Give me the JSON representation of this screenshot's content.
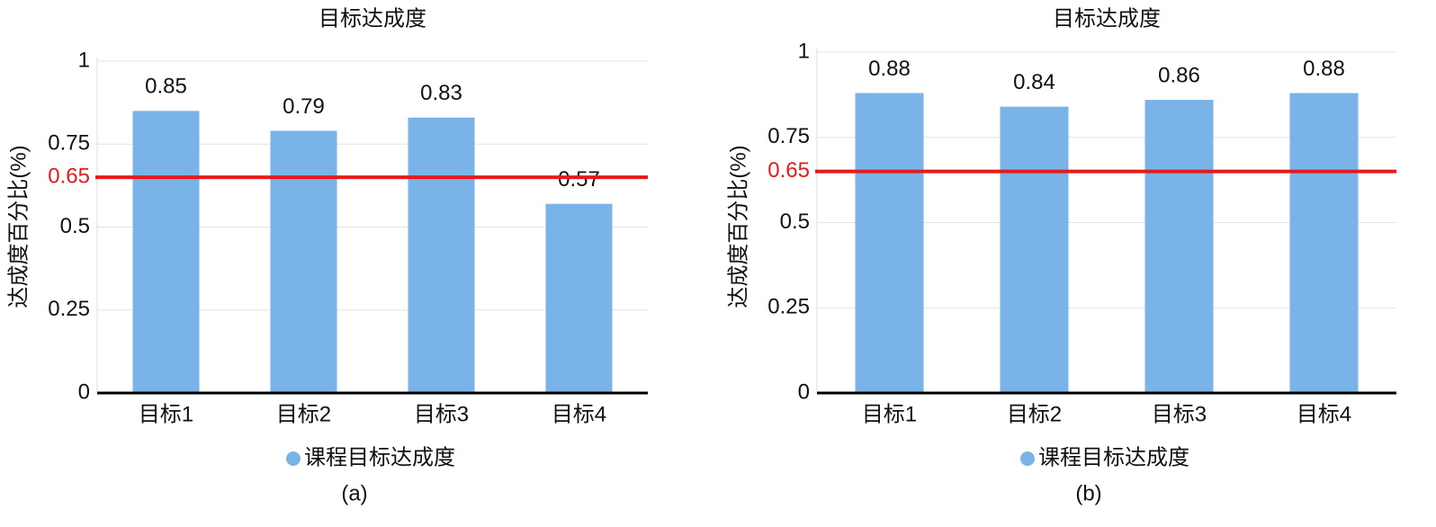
{
  "chart_data": [
    {
      "type": "bar",
      "title": "目标达成度",
      "y_label": "达成度百分比(%)",
      "categories": [
        "目标1",
        "目标2",
        "目标3",
        "目标4"
      ],
      "series": [
        {
          "name": "课程目标达成度",
          "color": "#7ab3e8",
          "values": [
            0.85,
            0.79,
            0.83,
            0.57
          ]
        }
      ],
      "ylim": [
        0,
        1
      ],
      "yticks": [
        0,
        0.25,
        0.5,
        0.75,
        1
      ],
      "grid": true,
      "reference_line": {
        "value": 0.65,
        "color": "#e8191c"
      },
      "legend": "bottom",
      "caption": "(a)"
    },
    {
      "type": "bar",
      "title": "目标达成度",
      "y_label": "达成度百分比(%)",
      "categories": [
        "目标1",
        "目标2",
        "目标3",
        "目标4"
      ],
      "series": [
        {
          "name": "课程目标达成度",
          "color": "#7ab3e8",
          "values": [
            0.88,
            0.84,
            0.86,
            0.88
          ]
        }
      ],
      "ylim": [
        0,
        1
      ],
      "yticks": [
        0,
        0.25,
        0.5,
        0.75,
        1
      ],
      "grid": true,
      "reference_line": {
        "value": 0.65,
        "color": "#e8191c"
      },
      "legend": "bottom",
      "caption": "(b)"
    }
  ]
}
